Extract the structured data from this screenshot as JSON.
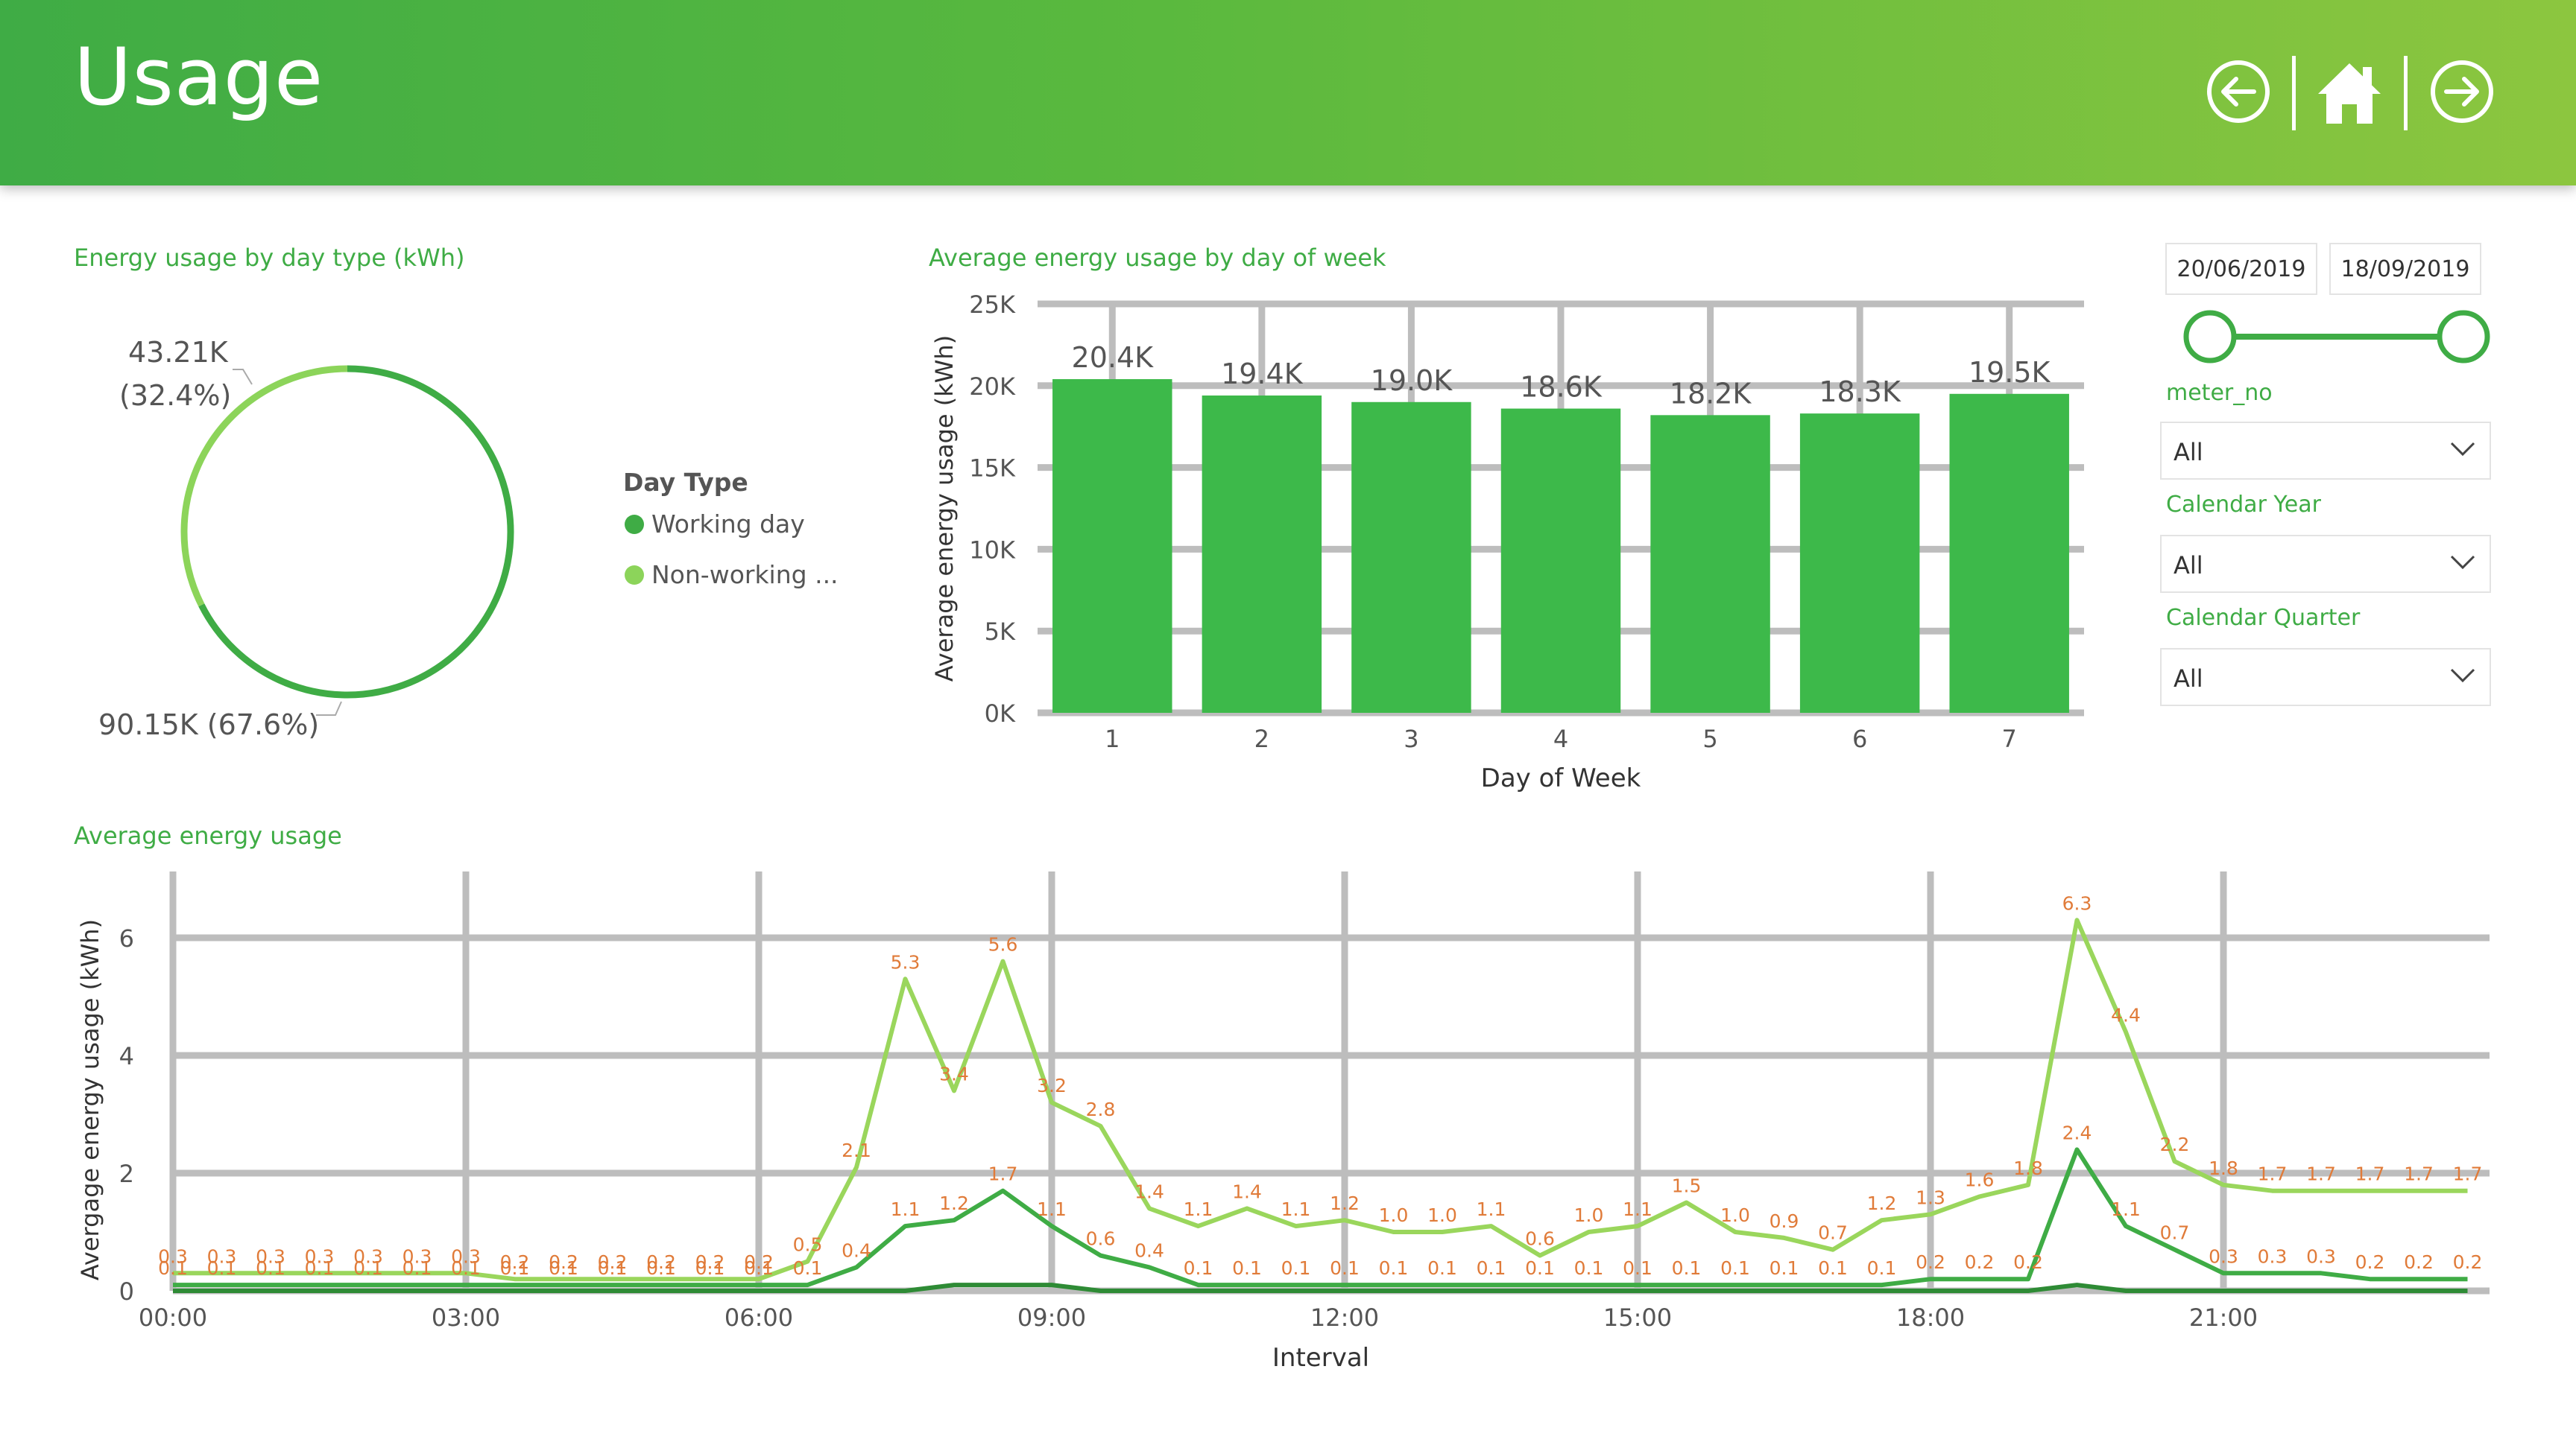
{
  "header": {
    "title": "Usage",
    "colors": {
      "start": "#3fac45",
      "end": "#8cc63f"
    },
    "icons": [
      "back-arrow-icon",
      "home-icon",
      "forward-arrow-icon"
    ]
  },
  "donut_card": {
    "title": "Energy usage by day type (kWh)",
    "label_nonworking_value": "43.21K",
    "label_nonworking_pct": "(32.4%)",
    "label_working": "90.15K (67.6%)",
    "legend_title": "Day Type",
    "legend": [
      {
        "label": "Working day",
        "color": "#3fac45"
      },
      {
        "label": "Non-working ...",
        "color": "#8cd45a"
      }
    ]
  },
  "bar_card": {
    "title": "Average energy usage by day of week"
  },
  "line_card": {
    "title": "Average energy usage"
  },
  "slicers": {
    "date_start": "20/06/2019",
    "date_end": "18/09/2019",
    "meter_label": "meter_no",
    "meter_value": "All",
    "year_label": "Calendar Year",
    "year_value": "All",
    "quarter_label": "Calendar Quarter",
    "quarter_value": "All"
  },
  "chart_data": [
    {
      "type": "pie",
      "title": "Energy usage by day type (kWh)",
      "categories": [
        "Working day",
        "Non-working day"
      ],
      "values": [
        90150,
        43210
      ],
      "labels": [
        "90.15K (67.6%)",
        "43.21K (32.4%)"
      ],
      "colors": [
        "#3fac45",
        "#8cd45a"
      ]
    },
    {
      "type": "bar",
      "title": "Average energy usage by day of week",
      "xlabel": "Day of Week",
      "ylabel": "Average energy usage (kWh)",
      "categories": [
        "1",
        "2",
        "3",
        "4",
        "5",
        "6",
        "7"
      ],
      "values": [
        20400,
        19400,
        19000,
        18600,
        18200,
        18300,
        19500
      ],
      "data_labels": [
        "20.4K",
        "19.4K",
        "19.0K",
        "18.6K",
        "18.2K",
        "18.3K",
        "19.5K"
      ],
      "ylim": [
        0,
        25000
      ],
      "yticks": [
        0,
        5000,
        10000,
        15000,
        20000,
        25000
      ],
      "ytick_labels": [
        "0K",
        "5K",
        "10K",
        "15K",
        "20K",
        "25K"
      ],
      "grid": true,
      "bar_color": "#3db94a"
    },
    {
      "type": "line",
      "title": "Average energy usage",
      "xlabel": "Interval",
      "ylabel": "Avergage energy usage (kWh)",
      "x": [
        "00:00",
        "00:30",
        "01:00",
        "01:30",
        "02:00",
        "02:30",
        "03:00",
        "03:30",
        "04:00",
        "04:30",
        "05:00",
        "05:30",
        "06:00",
        "06:30",
        "07:00",
        "07:30",
        "08:00",
        "08:30",
        "09:00",
        "09:30",
        "10:00",
        "10:30",
        "11:00",
        "11:30",
        "12:00",
        "12:30",
        "13:00",
        "13:30",
        "14:00",
        "14:30",
        "15:00",
        "15:30",
        "16:00",
        "16:30",
        "17:00",
        "17:30",
        "18:00",
        "18:30",
        "19:00",
        "19:30",
        "20:00",
        "20:30",
        "21:00",
        "21:30",
        "22:00",
        "22:30",
        "23:00",
        "23:30"
      ],
      "xtick_labels": [
        "00:00",
        "03:00",
        "06:00",
        "09:00",
        "12:00",
        "15:00",
        "18:00",
        "21:00"
      ],
      "ylim": [
        0,
        7
      ],
      "yticks": [
        0,
        2,
        4,
        6
      ],
      "grid": true,
      "series": [
        {
          "color": "#9ad65c",
          "values": [
            0.3,
            0.3,
            0.3,
            0.3,
            0.3,
            0.3,
            0.3,
            0.2,
            0.2,
            0.2,
            0.2,
            0.2,
            0.2,
            0.5,
            2.1,
            5.3,
            3.4,
            5.6,
            3.2,
            2.8,
            1.4,
            1.1,
            1.4,
            1.1,
            1.2,
            1.0,
            1.0,
            1.1,
            0.6,
            1.0,
            1.1,
            1.5,
            1.0,
            0.9,
            0.7,
            1.2,
            1.3,
            1.6,
            1.8,
            6.3,
            4.4,
            2.2,
            1.8,
            1.7,
            1.7,
            1.7,
            1.7,
            1.7
          ]
        },
        {
          "color": "#3fac45",
          "values": [
            0.1,
            0.1,
            0.1,
            0.1,
            0.1,
            0.1,
            0.1,
            0.1,
            0.1,
            0.1,
            0.1,
            0.1,
            0.1,
            0.1,
            0.4,
            1.1,
            1.2,
            1.7,
            1.1,
            0.6,
            0.4,
            0.1,
            0.1,
            0.1,
            0.1,
            0.1,
            0.1,
            0.1,
            0.1,
            0.1,
            0.1,
            0.1,
            0.1,
            0.1,
            0.1,
            0.1,
            0.2,
            0.2,
            0.2,
            2.4,
            1.1,
            0.7,
            0.3,
            0.3,
            0.3,
            0.2,
            0.2,
            0.2
          ]
        },
        {
          "color": "#2e8b35",
          "values": [
            0.0,
            0.0,
            0.0,
            0.0,
            0.0,
            0.0,
            0.0,
            0.0,
            0.0,
            0.0,
            0.0,
            0.0,
            0.0,
            0.0,
            0.0,
            0.0,
            0.1,
            0.1,
            0.1,
            0.0,
            0.0,
            0.0,
            0.0,
            0.0,
            0.0,
            0.0,
            0.0,
            0.0,
            0.0,
            0.0,
            0.0,
            0.0,
            0.0,
            0.0,
            0.0,
            0.0,
            0.0,
            0.0,
            0.0,
            0.1,
            0.0,
            0.0,
            0.0,
            0.0,
            0.0,
            0.0,
            0.0,
            0.0
          ]
        }
      ],
      "data_label_color": "#e07b39"
    }
  ]
}
